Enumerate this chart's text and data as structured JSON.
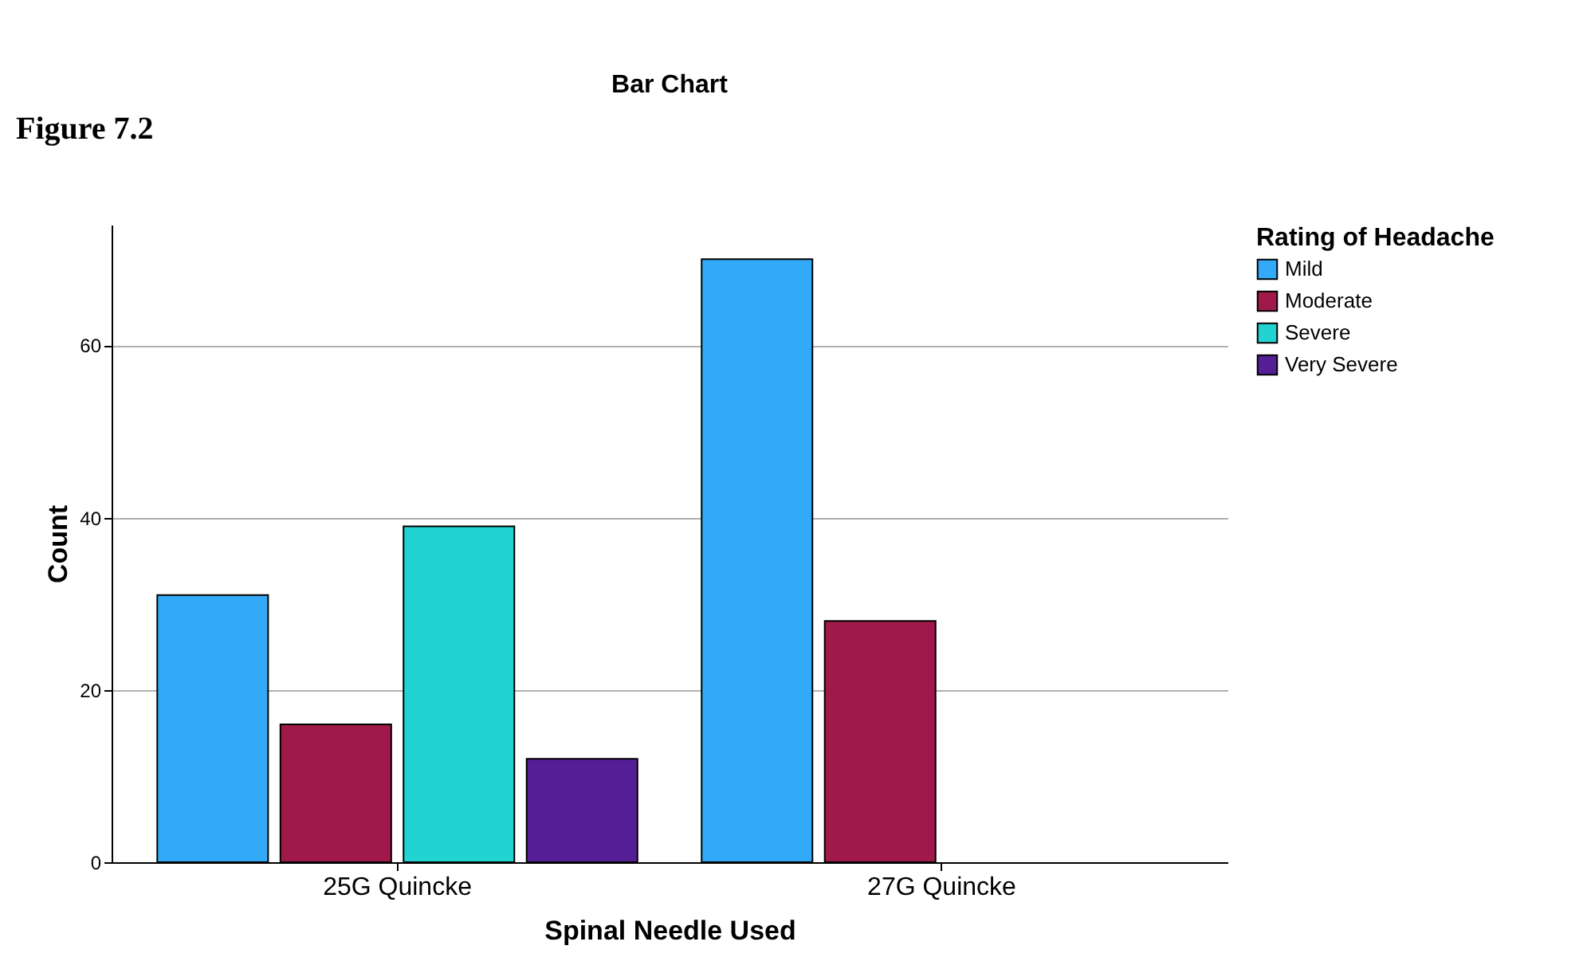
{
  "chart_data": {
    "type": "bar",
    "title": "Bar Chart",
    "xlabel": "Spinal Needle Used",
    "ylabel": "Count",
    "legend_title": "Rating of Headache",
    "annotations": [
      "Figure 7.2"
    ],
    "categories": [
      "25G Quincke",
      "27G Quincke"
    ],
    "series": [
      {
        "name": "Mild",
        "color": "#33aaf7",
        "values": [
          31,
          70
        ]
      },
      {
        "name": "Moderate",
        "color": "#a0194b",
        "values": [
          16,
          28
        ]
      },
      {
        "name": "Severe",
        "color": "#22d4d1",
        "values": [
          39,
          null
        ]
      },
      {
        "name": "Very Severe",
        "color": "#541e96",
        "values": [
          12,
          null
        ]
      }
    ],
    "ylim": [
      0,
      74
    ],
    "yticks": [
      0,
      20,
      40,
      60
    ],
    "grid": "y",
    "legend": "top right"
  }
}
